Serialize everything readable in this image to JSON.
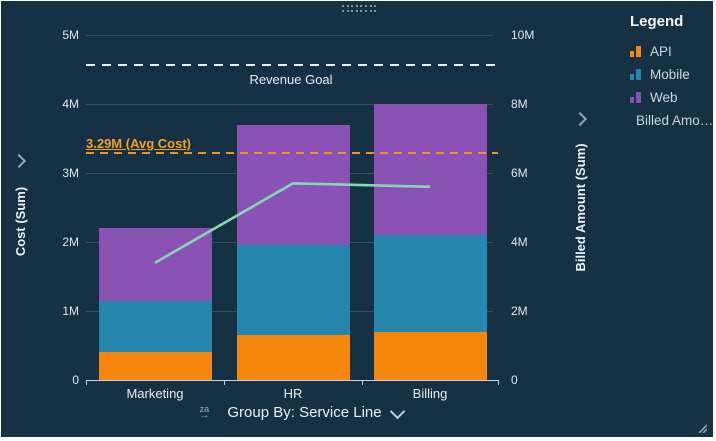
{
  "colors": {
    "background": "#163044",
    "api": "#F6870E",
    "mobile": "#2586AE",
    "web": "#8B52B5",
    "line": "#86D7B4",
    "ref_white": "#E9EEF3",
    "ref_orange": "#F59314"
  },
  "chart_data": {
    "type": "bar",
    "subtype": "stacked-bar-with-line-combo",
    "categories": [
      "Marketing",
      "HR",
      "Billing"
    ],
    "series": [
      {
        "name": "API",
        "color": "#F6870E",
        "values": [
          0.4,
          0.65,
          0.7
        ]
      },
      {
        "name": "Mobile",
        "color": "#2586AE",
        "values": [
          0.75,
          1.3,
          1.4
        ]
      },
      {
        "name": "Web",
        "color": "#8B52B5",
        "values": [
          1.05,
          1.75,
          1.9
        ]
      }
    ],
    "line_series": {
      "name": "Billed Amount",
      "color": "#86D7B4",
      "axis": "right",
      "values": [
        3.4,
        5.7,
        5.6
      ]
    },
    "left_axis": {
      "title": "Cost (Sum)",
      "range": [
        0,
        5
      ],
      "tick_labels": [
        "0",
        "1M",
        "2M",
        "3M",
        "4M",
        "5M"
      ],
      "tick_values": [
        0,
        1,
        2,
        3,
        4,
        5
      ]
    },
    "right_axis": {
      "title": "Billed Amount (Sum)",
      "range": [
        0,
        10
      ],
      "tick_labels": [
        "0",
        "2M",
        "4M",
        "6M",
        "8M",
        "10M"
      ],
      "tick_values": [
        0,
        2,
        4,
        6,
        8,
        10
      ]
    },
    "reference_lines": [
      {
        "label": "Revenue Goal",
        "value_left_axis": 4.57,
        "style": "white",
        "label_position": "below-center"
      },
      {
        "label": "3.29M (Avg Cost)",
        "value_left_axis": 3.29,
        "style": "orange",
        "label_position": "above-left"
      }
    ],
    "grid": true,
    "legend_position": "right"
  },
  "legend": {
    "title": "Legend",
    "items": [
      {
        "label": "API",
        "icon": "bars",
        "color": "#F6870E"
      },
      {
        "label": "Mobile",
        "icon": "bars",
        "color": "#2586AE"
      },
      {
        "label": "Web",
        "icon": "bars",
        "color": "#8B52B5"
      },
      {
        "label": "Billed Amo…",
        "icon": "line",
        "color": "#86D7B4"
      }
    ]
  },
  "controls": {
    "group_by_label": "Group By: Service Line",
    "sort_icon_text": "za"
  }
}
